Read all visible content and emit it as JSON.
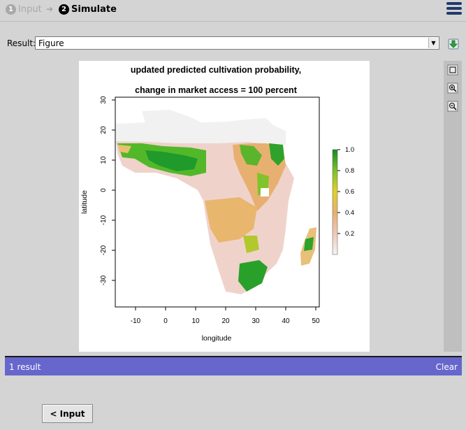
{
  "steps": [
    {
      "num": "1",
      "label": "Input",
      "state": "inactive"
    },
    {
      "num": "2",
      "label": "Simulate",
      "state": "active"
    }
  ],
  "step_arrow": "➔",
  "result": {
    "label": "Result:",
    "selected": "Figure"
  },
  "icons": {
    "menu": "hamburger-menu-icon",
    "download": "download-icon",
    "fit": "fit-view-icon",
    "zoom_in": "zoom-in-icon",
    "zoom_out": "zoom-out-icon"
  },
  "figure": {
    "title_line1": "updated predicted cultivation probability,",
    "title_line2": "change in market access = 100 percent",
    "xlabel": "longitude",
    "ylabel": "latitude",
    "xticks": [
      "-10",
      "0",
      "10",
      "20",
      "30",
      "40",
      "50"
    ],
    "yticks": [
      "30",
      "20",
      "10",
      "0",
      "-10",
      "-20",
      "-30"
    ],
    "legend_ticks": [
      "1.0",
      "0.8",
      "0.6",
      "0.4",
      "0.2"
    ]
  },
  "results_bar": {
    "count": "1 result",
    "clear": "Clear"
  },
  "input_button": "< Input",
  "colors": {
    "background": "#d4d4d4",
    "results_bar": "#6666cc",
    "menu_icon": "#1f3a6b",
    "map_low": "#f2f2f2",
    "map_mid": "#e8b89c",
    "map_high": "#1f9a2b"
  }
}
